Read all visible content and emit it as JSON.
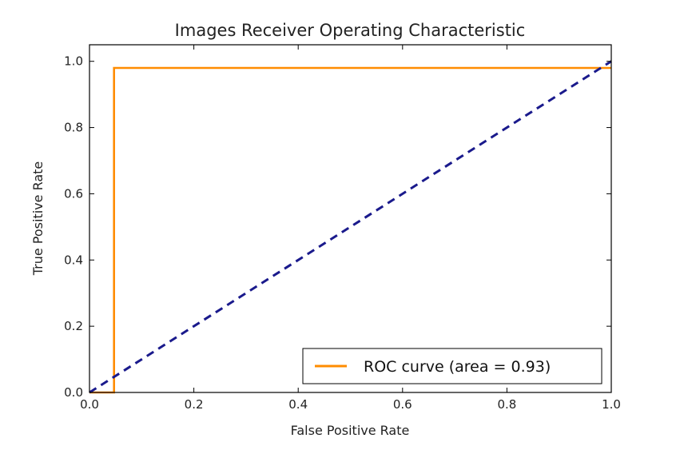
{
  "chart_data": {
    "type": "line",
    "title": "Images Receiver Operating Characteristic",
    "xlabel": "False Positive Rate",
    "ylabel": "True Positive Rate",
    "xlim": [
      0.0,
      1.0
    ],
    "ylim": [
      0.0,
      1.05
    ],
    "xticks": [
      "0.0",
      "0.2",
      "0.4",
      "0.6",
      "0.8",
      "1.0"
    ],
    "yticks": [
      "0.0",
      "0.2",
      "0.4",
      "0.6",
      "0.8",
      "1.0"
    ],
    "grid": false,
    "legend_position": "lower-right",
    "series": [
      {
        "name": "ROC curve (area = 0.93)",
        "color": "#ff8c00",
        "style": "solid",
        "x": [
          0.0,
          0.047,
          0.047,
          1.0
        ],
        "y": [
          0.0,
          0.0,
          0.98,
          0.98
        ]
      },
      {
        "color": "#1a1a8c",
        "style": "dashed",
        "x": [
          0.0,
          1.0
        ],
        "y": [
          0.0,
          1.0
        ]
      }
    ]
  }
}
